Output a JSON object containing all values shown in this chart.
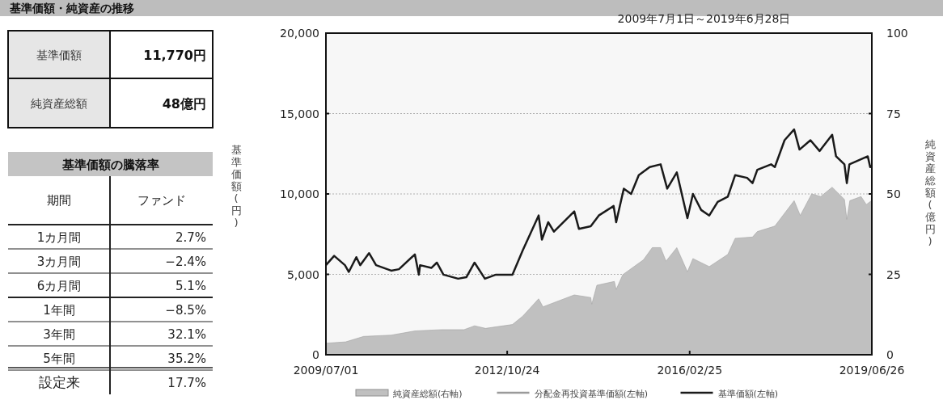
{
  "chart_data": [
    {
      "type": "other",
      "title": "基準価額・純資産の推移",
      "annotations": [
        "基準価額",
        "11,770円",
        "純資産総額",
        "48億円",
        "基準価額の騰落率",
        "期間",
        "ファンド",
        "1カ月間",
        "2.7%",
        "3カ月間",
        "−2.4%",
        "6カ月間",
        "5.1%",
        "1年間",
        "−8.5%",
        "3年間",
        "32.1%",
        "5年間",
        "35.2%",
        "設定来",
        "17.7%"
      ]
    },
    {
      "type": "line",
      "subtitle": "2009年7月1日～2019年6月28日",
      "ylabel": "基準価額(円)",
      "y2label": "純資産総額(億円)",
      "xlim": [
        "2009-07-01",
        "2019-06-26"
      ],
      "xticks": [
        {
          "value": "2009-07-01",
          "label": "2009/07/01"
        },
        {
          "value": "2012-10-24",
          "label": "2012/10/24"
        },
        {
          "value": "2016-02-25",
          "label": "2016/02/25"
        },
        {
          "value": "2019-06-26",
          "label": "2019/06/26"
        }
      ],
      "ylim": [
        0,
        20000
      ],
      "yticks": [
        {
          "value": 0,
          "label": "0"
        },
        {
          "value": 5000,
          "label": "5,000"
        },
        {
          "value": 10000,
          "label": "10,000"
        },
        {
          "value": 15000,
          "label": "15,000"
        },
        {
          "value": 20000,
          "label": "20,000"
        }
      ],
      "y2lim": [
        0,
        100
      ],
      "y2ticks": [
        0,
        25,
        50,
        75,
        100
      ],
      "grid": "y",
      "legend": "bottom",
      "series": [
        {
          "name": "純資産総額(右軸)",
          "type": "area",
          "axis": "y2",
          "color": "#c0c0c0",
          "x": [
            "2009-07-01",
            "2009-11-10",
            "2010-03-10",
            "2010-09-10",
            "2011-02-15",
            "2011-08-10",
            "2012-01-10",
            "2012-03-20",
            "2012-06-01",
            "2012-11-28",
            "2013-02-05",
            "2013-05-22",
            "2013-06-20",
            "2014-01-15",
            "2014-05-05",
            "2014-05-12",
            "2014-06-15",
            "2014-10-10",
            "2014-10-22",
            "2014-12-05",
            "2015-04-22",
            "2015-06-20",
            "2015-08-15",
            "2015-09-20",
            "2015-12-01",
            "2016-02-10",
            "2016-03-18",
            "2016-07-05",
            "2016-11-06",
            "2016-12-25",
            "2017-04-20",
            "2017-05-22",
            "2017-09-16",
            "2018-01-23",
            "2018-03-05",
            "2018-05-20",
            "2018-07-20",
            "2018-10-04",
            "2018-12-25",
            "2019-01-10",
            "2019-01-30",
            "2019-04-15",
            "2019-05-20",
            "2019-06-26"
          ],
          "values": [
            3.6,
            4.0,
            5.7,
            6.1,
            7.4,
            7.8,
            7.8,
            9.0,
            8.2,
            9.4,
            12.0,
            17.4,
            14.9,
            18.6,
            17.8,
            15.7,
            21.6,
            22.8,
            20.3,
            24.9,
            29.5,
            33.3,
            33.3,
            29.1,
            33.3,
            25.8,
            29.9,
            27.4,
            31.2,
            36.2,
            36.6,
            38.3,
            40.0,
            47.9,
            43.3,
            50.0,
            49.2,
            52.1,
            48.3,
            42.1,
            47.9,
            49.2,
            46.7,
            48
          ]
        },
        {
          "name": "分配金再投資基準価額(左軸)",
          "type": "line",
          "color": "#9a9a9a"
        },
        {
          "name": "基準価額(左軸)",
          "type": "line",
          "color": "#1a1a1a",
          "x": [
            "2009-07-01",
            "2009-08-25",
            "2009-11-05",
            "2009-12-01",
            "2010-01-20",
            "2010-02-15",
            "2010-04-15",
            "2010-06-01",
            "2010-09-10",
            "2010-11-01",
            "2011-02-15",
            "2011-03-14",
            "2011-03-22",
            "2011-06-05",
            "2011-07-12",
            "2011-08-25",
            "2011-12-01",
            "2012-01-25",
            "2012-03-20",
            "2012-05-28",
            "2012-08-10",
            "2012-11-28",
            "2013-02-05",
            "2013-05-22",
            "2013-06-13",
            "2013-07-25",
            "2013-09-01",
            "2014-01-15",
            "2014-02-15",
            "2014-05-05",
            "2014-06-28",
            "2014-10-05",
            "2014-10-22",
            "2014-12-12",
            "2015-01-30",
            "2015-03-22",
            "2015-06-03",
            "2015-08-15",
            "2015-09-28",
            "2015-12-01",
            "2016-02-10",
            "2016-03-18",
            "2016-05-12",
            "2016-07-05",
            "2016-08-30",
            "2016-11-06",
            "2016-12-25",
            "2017-03-15",
            "2017-04-20",
            "2017-05-22",
            "2017-08-22",
            "2017-09-16",
            "2017-11-20",
            "2018-01-23",
            "2018-02-28",
            "2018-05-12",
            "2018-07-12",
            "2018-10-04",
            "2018-10-30",
            "2018-12-25",
            "2019-01-10",
            "2019-01-27",
            "2019-05-30",
            "2019-06-15",
            "2019-06-26"
          ],
          "values": [
            5570,
            6150,
            5570,
            5150,
            6070,
            5570,
            6320,
            5570,
            5230,
            5320,
            6240,
            4980,
            5570,
            5400,
            5730,
            4980,
            4730,
            4820,
            5730,
            4730,
            4980,
            4980,
            6490,
            8660,
            7160,
            8240,
            7660,
            8910,
            7830,
            7990,
            8660,
            9250,
            8240,
            10330,
            10000,
            11170,
            11670,
            11840,
            10330,
            11340,
            8490,
            10000,
            9000,
            8660,
            9500,
            9830,
            11170,
            11000,
            10670,
            11500,
            11840,
            11670,
            13340,
            14010,
            12760,
            13340,
            12670,
            13680,
            12340,
            11840,
            10670,
            11840,
            12340,
            11670,
            11770
          ]
        }
      ]
    }
  ]
}
